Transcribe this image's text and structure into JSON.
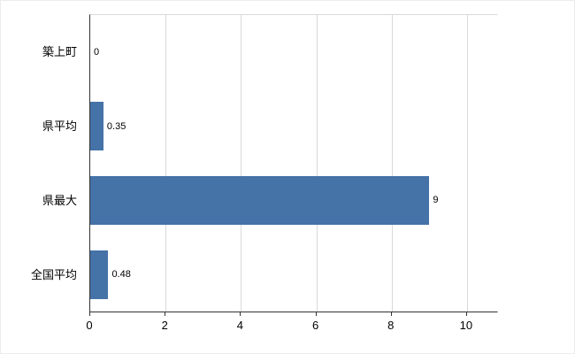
{
  "chart_data": {
    "type": "bar",
    "orientation": "horizontal",
    "title": "",
    "categories": [
      "築上町",
      "県平均",
      "県最大",
      "全国平均"
    ],
    "values": [
      0,
      0.35,
      9,
      0.48
    ],
    "value_labels": [
      "0",
      "0.35",
      "9",
      "0.48"
    ],
    "x_ticks": [
      "0",
      "2",
      "4",
      "6",
      "8",
      "10"
    ],
    "xlim": [
      0,
      10.8
    ],
    "bar_color": "#4572a7",
    "grid": true,
    "gridline_color": "#d9d9d9",
    "axis_color": "#333333",
    "background_color": "#ffffff",
    "legend_position": "none"
  }
}
